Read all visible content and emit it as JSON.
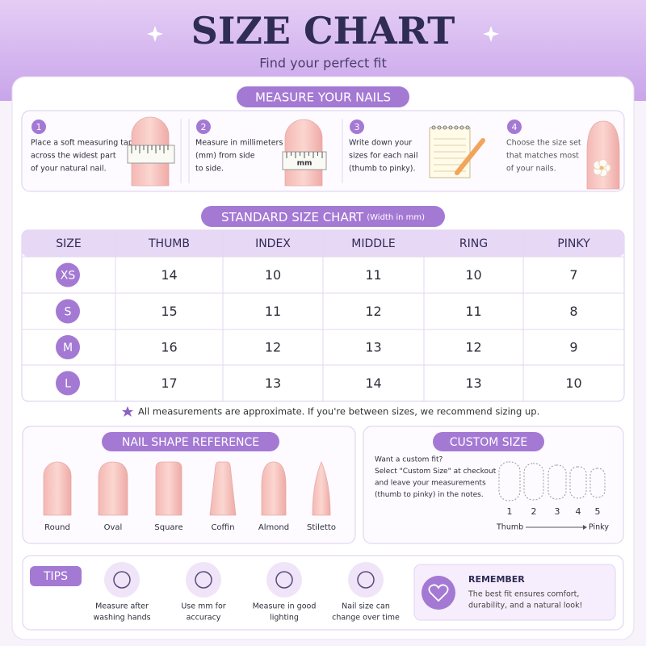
{
  "header": {
    "title": "SIZE CHART",
    "subtitle": "Find your perfect fit"
  },
  "measure": {
    "title": "MEASURE YOUR NAILS",
    "steps": [
      {
        "number": "1",
        "text": [
          "Place a soft measuring tape",
          "across the widest part",
          "of your natural nail."
        ]
      },
      {
        "number": "2",
        "text": [
          "Measure in millimeters",
          "(mm) from side",
          "to side."
        ],
        "tape_label": "mm"
      },
      {
        "number": "3",
        "text": [
          "Write down your",
          "sizes for each nail",
          "(thumb to pinky)."
        ]
      },
      {
        "number": "4",
        "text": [
          "Choose the size set",
          "that matches most",
          "of your nails."
        ]
      }
    ]
  },
  "table": {
    "title": "STANDARD SIZE CHART",
    "title_note": "(Width in mm)",
    "header": [
      "SIZE",
      "THUMB",
      "INDEX",
      "MIDDLE",
      "RING",
      "PINKY"
    ],
    "rows": [
      [
        "XS",
        "14",
        "10",
        "11",
        "10",
        "7"
      ],
      [
        "S",
        "15",
        "11",
        "12",
        "11",
        "8"
      ],
      [
        "M",
        "16",
        "12",
        "13",
        "12",
        "9"
      ],
      [
        "L",
        "17",
        "13",
        "14",
        "13",
        "10"
      ]
    ]
  },
  "note": "All measurements are approximate. If you're between sizes, we recommend sizing up.",
  "shapes": {
    "title": "NAIL SHAPE REFERENCE",
    "items": [
      "Round",
      "Oval",
      "Square",
      "Coffin",
      "Almond",
      "Stiletto"
    ]
  },
  "custom": {
    "title": "CUSTOM SIZE",
    "text": [
      "Want a custom fit?",
      "Select \"Custom Size\" at checkout",
      "and leave your measurements",
      "(thumb to pinky) in the notes."
    ],
    "numbers": [
      "1",
      "2",
      "3",
      "4",
      "5"
    ],
    "from": "Thumb",
    "to": "Pinky"
  },
  "tips": {
    "title": "TIPS",
    "items": [
      [
        "Measure after",
        "washing hands"
      ],
      [
        "Use mm for",
        "accuracy"
      ],
      [
        "Measure in good",
        "lighting"
      ],
      [
        "Nail size can",
        "change over time"
      ]
    ]
  },
  "remember": {
    "title": "REMEMBER",
    "text": [
      "The best fit ensures comfort,",
      "durability, and a natural look!"
    ]
  }
}
